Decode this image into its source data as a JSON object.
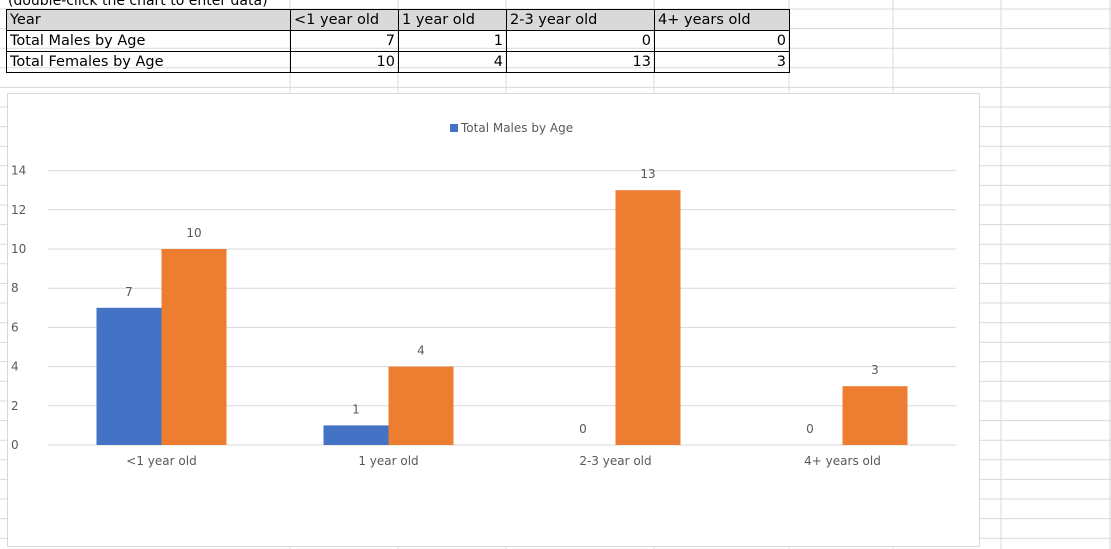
{
  "note": "(double-click the chart to enter data)",
  "table": {
    "header": [
      "Year",
      "<1 year old",
      "1 year old",
      "2-3 year old",
      "4+ years old"
    ],
    "rows": [
      {
        "label": "Total Males by Age",
        "values": [
          "7",
          "1",
          "0",
          "0"
        ]
      },
      {
        "label": "Total Females by Age",
        "values": [
          "10",
          "4",
          "13",
          "3"
        ]
      }
    ]
  },
  "chart_data": {
    "type": "bar",
    "categories": [
      "<1 year old",
      "1 year old",
      "2-3 year old",
      "4+ years old"
    ],
    "series": [
      {
        "name": "Total Males by Age",
        "values": [
          7,
          1,
          0,
          0
        ],
        "color": "#4472c4"
      },
      {
        "name": "Total Females by Age",
        "values": [
          10,
          4,
          13,
          3
        ],
        "color": "#ed7d31"
      }
    ],
    "legend_entries": [
      "Total Males by Age"
    ],
    "legend_position": "top",
    "ylim": [
      0,
      14
    ],
    "yticks": [
      0,
      2,
      4,
      6,
      8,
      10,
      12,
      14
    ],
    "grid": true,
    "data_labels": true
  },
  "colors": {
    "gridline": "#d9d9d9",
    "label_text": "#595959"
  }
}
